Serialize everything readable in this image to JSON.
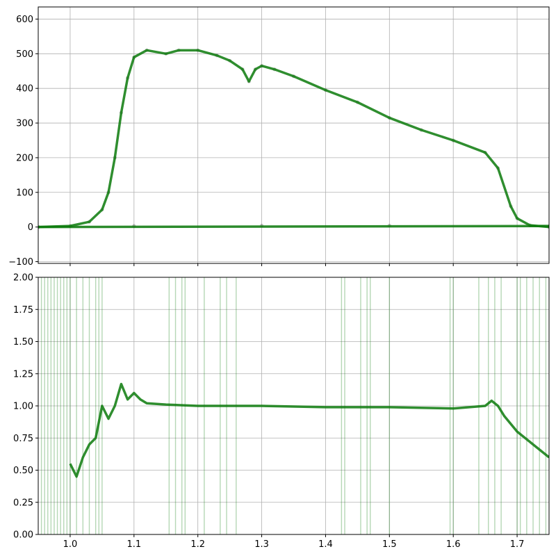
{
  "chart_data": [
    {
      "type": "scatter",
      "panel": "top",
      "title": "",
      "xlabel": "",
      "ylabel": "",
      "xlim": [
        0.95,
        1.75
      ],
      "ylim": [
        -105,
        635
      ],
      "grid": true,
      "xticks": [
        1.0,
        1.1,
        1.2,
        1.3,
        1.4,
        1.5,
        1.6,
        1.7
      ],
      "yticks": [
        -100,
        0,
        100,
        200,
        300,
        400,
        500,
        600
      ],
      "ytick_labels": [
        "−100",
        "0",
        "100",
        "200",
        "300",
        "400",
        "500",
        "600"
      ],
      "series": [
        {
          "style": "points",
          "color": "#000000",
          "x": [
            0.95,
            1.0,
            1.03,
            1.05,
            1.06,
            1.07,
            1.08,
            1.09,
            1.1,
            1.12,
            1.15,
            1.17,
            1.2,
            1.23,
            1.25,
            1.27,
            1.28,
            1.29,
            1.3,
            1.32,
            1.35,
            1.4,
            1.45,
            1.5,
            1.55,
            1.6,
            1.65,
            1.67,
            1.69,
            1.7,
            1.72,
            1.75
          ],
          "y": [
            0,
            3,
            15,
            50,
            100,
            200,
            330,
            430,
            490,
            510,
            500,
            510,
            510,
            495,
            480,
            455,
            420,
            455,
            465,
            455,
            435,
            395,
            360,
            315,
            280,
            250,
            215,
            170,
            60,
            25,
            5,
            0
          ]
        },
        {
          "style": "points",
          "color": "#000000",
          "x": [
            0.95,
            1.1,
            1.3,
            1.5,
            1.75
          ],
          "y": [
            0,
            3,
            4,
            4,
            2
          ]
        },
        {
          "style": "line",
          "color": "#0a7a0a",
          "x": [
            0.95,
            1.0,
            1.03,
            1.05,
            1.06,
            1.07,
            1.08,
            1.09,
            1.1,
            1.12,
            1.15,
            1.17,
            1.2,
            1.23,
            1.25,
            1.27,
            1.28,
            1.29,
            1.3,
            1.32,
            1.35,
            1.4,
            1.45,
            1.5,
            1.55,
            1.6,
            1.65,
            1.67,
            1.69,
            1.7,
            1.72,
            1.75
          ],
          "y": [
            0,
            3,
            15,
            50,
            100,
            200,
            330,
            430,
            490,
            510,
            500,
            510,
            510,
            495,
            480,
            455,
            420,
            455,
            465,
            455,
            435,
            395,
            360,
            315,
            280,
            250,
            215,
            170,
            60,
            25,
            5,
            0
          ]
        },
        {
          "style": "line",
          "color": "#0a7a0a",
          "x": [
            0.95,
            1.75
          ],
          "y": [
            0,
            3
          ]
        }
      ]
    },
    {
      "type": "line",
      "panel": "bottom",
      "title": "",
      "xlabel": "",
      "ylabel": "",
      "xlim": [
        0.95,
        1.75
      ],
      "ylim": [
        0,
        2
      ],
      "grid": true,
      "xticks": [
        1.0,
        1.1,
        1.2,
        1.3,
        1.4,
        1.5,
        1.6,
        1.7
      ],
      "yticks": [
        0,
        0.25,
        0.5,
        0.75,
        1.0,
        1.25,
        1.5,
        1.75,
        2.0
      ],
      "xtick_labels": [
        "1.0",
        "1.1",
        "1.2",
        "1.3",
        "1.4",
        "1.5",
        "1.6",
        "1.7"
      ],
      "ytick_labels": [
        "0.00",
        "0.25",
        "0.50",
        "0.75",
        "1.00",
        "1.25",
        "1.50",
        "1.75",
        "2.00"
      ],
      "series": [
        {
          "style": "line",
          "color": "#0a7a0a",
          "x": [
            1.0,
            1.01,
            1.02,
            1.03,
            1.04,
            1.05,
            1.06,
            1.07,
            1.08,
            1.09,
            1.1,
            1.11,
            1.12,
            1.15,
            1.2,
            1.3,
            1.4,
            1.5,
            1.6,
            1.65,
            1.66,
            1.67,
            1.68,
            1.7,
            1.72,
            1.75
          ],
          "y": [
            0.55,
            0.45,
            0.6,
            0.7,
            0.75,
            1.0,
            0.9,
            1.0,
            1.17,
            1.05,
            1.1,
            1.05,
            1.02,
            1.01,
            1.0,
            1.0,
            0.99,
            0.99,
            0.98,
            1.0,
            1.04,
            1.0,
            0.92,
            0.8,
            0.72,
            0.6
          ]
        }
      ],
      "vertical_lines": {
        "color": "#0a7a0a",
        "x": [
          0.955,
          0.96,
          0.965,
          0.97,
          0.975,
          0.98,
          0.985,
          0.99,
          0.995,
          1.0,
          1.01,
          1.02,
          1.03,
          1.04,
          1.045,
          1.05,
          1.155,
          1.165,
          1.175,
          1.18,
          1.21,
          1.235,
          1.245,
          1.26,
          1.425,
          1.43,
          1.455,
          1.465,
          1.47,
          1.5,
          1.595,
          1.6,
          1.64,
          1.655,
          1.665,
          1.675,
          1.7,
          1.705,
          1.715,
          1.725,
          1.735,
          1.745
        ]
      }
    }
  ]
}
